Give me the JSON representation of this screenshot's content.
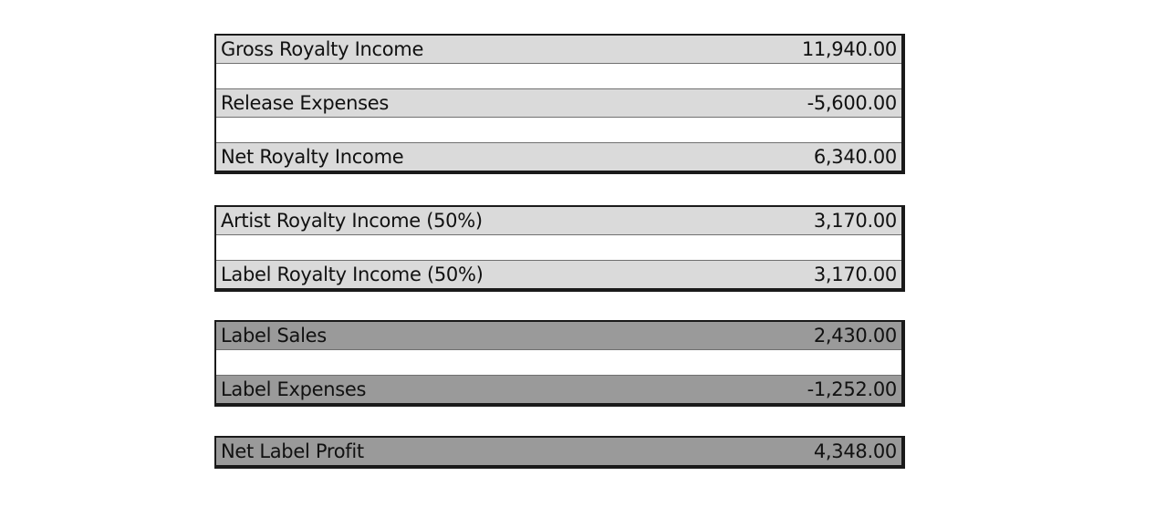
{
  "groups": [
    {
      "rows": [
        {
          "label": "Gross Royalty Income",
          "value": "11,940.00"
        },
        {
          "label": "Release Expenses",
          "value": "-5,600.00"
        },
        {
          "label": "Net Royalty Income",
          "value": "6,340.00"
        }
      ]
    },
    {
      "rows": [
        {
          "label": "Artist Royalty Income (50%)",
          "value": "3,170.00"
        },
        {
          "label": "Label Royalty Income (50%)",
          "value": "3,170.00"
        }
      ]
    },
    {
      "rows": [
        {
          "label": "Label Sales",
          "value": "2,430.00"
        },
        {
          "label": "Label Expenses",
          "value": "-1,252.00"
        }
      ]
    },
    {
      "rows": [
        {
          "label": "Net Label Profit",
          "value": "4,348.00"
        }
      ]
    }
  ],
  "colors": {
    "light_row": "#dadada",
    "dark_row": "#9a9a9a",
    "border": "#1a1a1a"
  }
}
